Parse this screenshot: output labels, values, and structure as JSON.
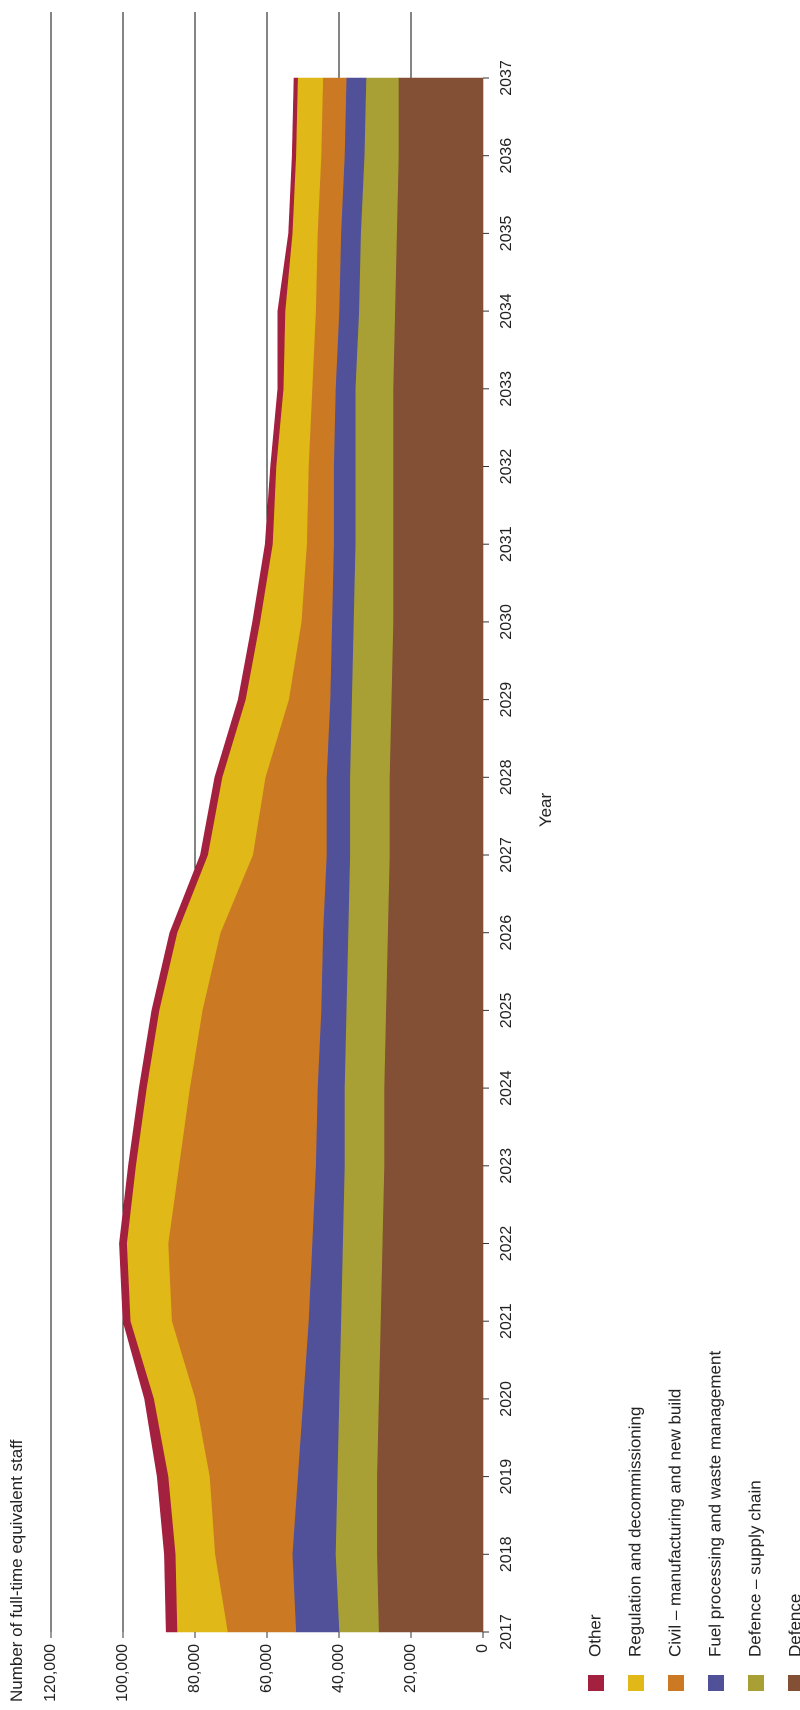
{
  "chart_data": {
    "type": "area",
    "title": "",
    "ylabel": "Number of full-time equivalent staff",
    "xlabel": "Year",
    "ylim": [
      0,
      120000
    ],
    "yticks": [
      0,
      20000,
      40000,
      60000,
      80000,
      100000,
      120000
    ],
    "ytick_labels": [
      "0",
      "20,000",
      "40,000",
      "60,000",
      "80,000",
      "100,000",
      "120,000"
    ],
    "x": [
      2017,
      2018,
      2019,
      2020,
      2021,
      2022,
      2023,
      2024,
      2025,
      2026,
      2027,
      2028,
      2029,
      2030,
      2031,
      2032,
      2033,
      2034,
      2035,
      2036,
      2037
    ],
    "x_labels": [
      "2017",
      "2018",
      "2019",
      "2020",
      "2021",
      "2022",
      "2023",
      "2024",
      "2025",
      "2026",
      "2027",
      "2028",
      "2029",
      "2030",
      "2031",
      "2032",
      "2033",
      "2034",
      "2035",
      "2036",
      "2037"
    ],
    "grid": "horizontal",
    "stacked": true,
    "orientation": "rotated 90° clockwise (value axis runs horizontally, years run top to bottom)",
    "legend_position": "bottom",
    "series": [
      {
        "name": "Defence",
        "color": "#834f35",
        "values": [
          29000,
          29500,
          29500,
          29000,
          28500,
          28000,
          27500,
          27500,
          27000,
          26500,
          26000,
          26000,
          25500,
          25000,
          25000,
          25000,
          25000,
          24500,
          24000,
          23500,
          23500
        ]
      },
      {
        "name": "Defence – supply chain",
        "color": "#a8a035",
        "values": [
          11000,
          11500,
          11000,
          11000,
          11000,
          11000,
          11000,
          11000,
          11000,
          11000,
          11000,
          11000,
          11000,
          11000,
          10500,
          10500,
          10500,
          10000,
          10000,
          9500,
          9000
        ]
      },
      {
        "name": "Fuel processing and waste management",
        "color": "#51519a",
        "values": [
          12000,
          12000,
          11000,
          10000,
          9000,
          8500,
          8000,
          7500,
          7000,
          7000,
          6500,
          6500,
          6000,
          6000,
          6000,
          6000,
          5500,
          5500,
          5500,
          5500,
          5500
        ]
      },
      {
        "name": "Civil – manufacturing and new build",
        "color": "#cb7a23",
        "values": [
          19000,
          21500,
          24500,
          30000,
          38000,
          40000,
          38000,
          35500,
          33000,
          28500,
          20500,
          17000,
          11500,
          8500,
          7500,
          7000,
          6500,
          6500,
          6500,
          6500,
          6500
        ]
      },
      {
        "name": "Regulation and decommissioning",
        "color": "#e0b817",
        "values": [
          14000,
          11000,
          11500,
          11500,
          11500,
          11500,
          12000,
          12000,
          12000,
          12000,
          12500,
          12000,
          12000,
          11500,
          9500,
          9000,
          8000,
          8500,
          7000,
          7000,
          7000
        ]
      },
      {
        "name": "Other",
        "color": "#a3203f",
        "values": [
          3000,
          3000,
          3000,
          2500,
          2000,
          2000,
          2000,
          2000,
          2000,
          2000,
          2000,
          2000,
          2000,
          2000,
          2000,
          1500,
          1500,
          2000,
          1000,
          1000,
          1000
        ]
      }
    ]
  },
  "legend": [
    {
      "label": "Other",
      "color": "#a3203f"
    },
    {
      "label": "Regulation and decommissioning",
      "color": "#e0b817"
    },
    {
      "label": "Civil – manufacturing and new build",
      "color": "#cb7a23"
    },
    {
      "label": "Fuel processing and waste management",
      "color": "#51519a"
    },
    {
      "label": "Defence – supply chain",
      "color": "#a8a035"
    },
    {
      "label": "Defence",
      "color": "#834f35"
    }
  ]
}
